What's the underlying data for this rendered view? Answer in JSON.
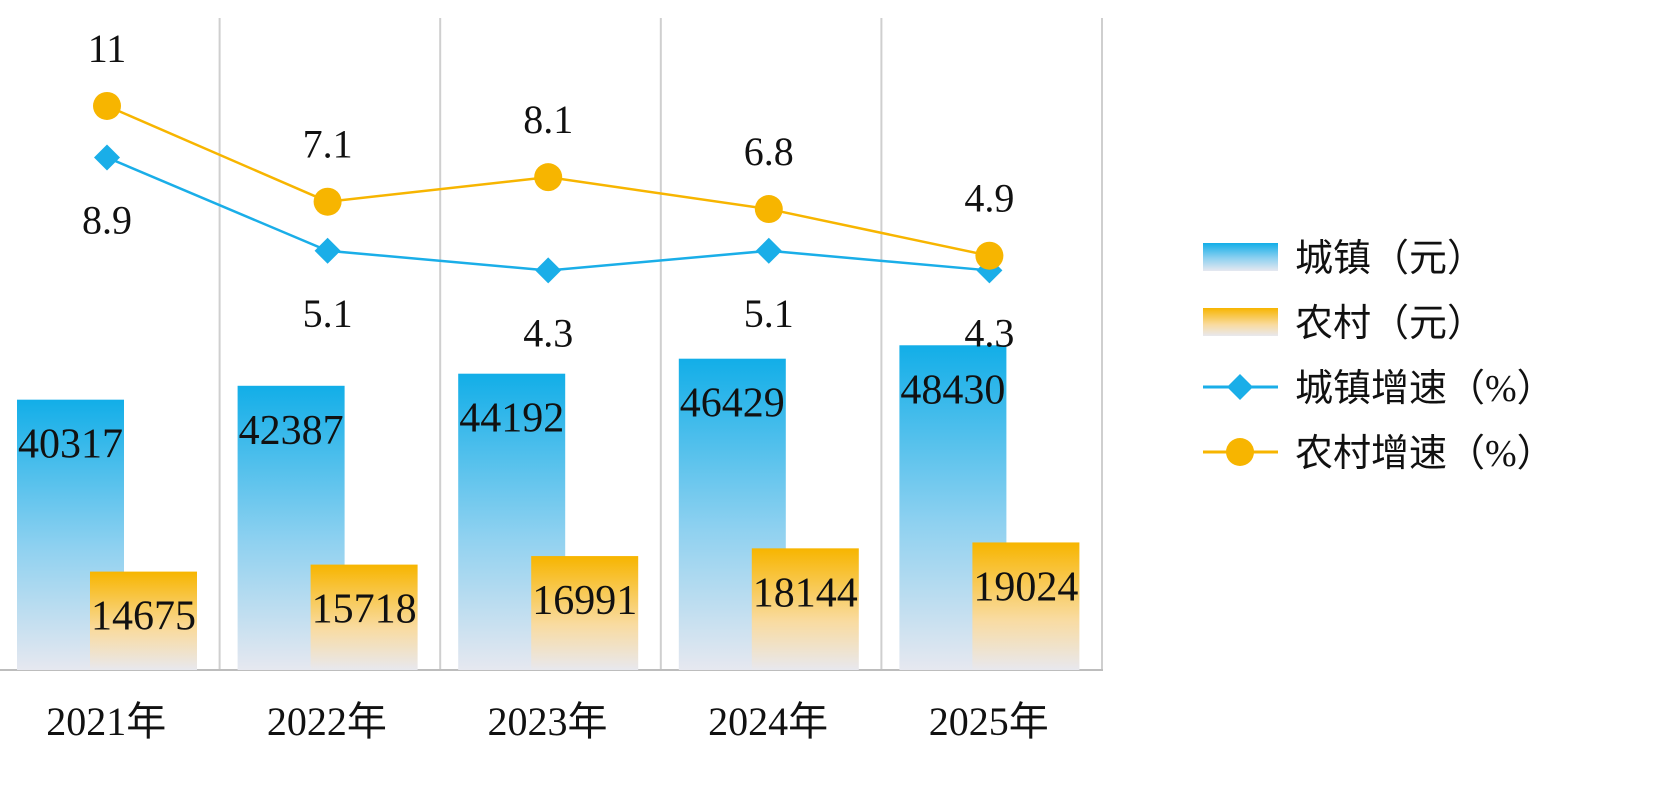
{
  "chart_data": {
    "type": "bar",
    "categories": [
      "2021年",
      "2022年",
      "2023年",
      "2024年",
      "2025年"
    ],
    "series": [
      {
        "name": "城镇（元）",
        "kind": "bar",
        "color": "#1aaee8",
        "values": [
          40317,
          42387,
          44192,
          46429,
          48430
        ]
      },
      {
        "name": "农村（元）",
        "kind": "bar",
        "color": "#f7b500",
        "values": [
          14675,
          15718,
          16991,
          18144,
          19024
        ]
      },
      {
        "name": "城镇增速（%）",
        "kind": "line",
        "marker": "diamond",
        "color": "#1aaee8",
        "values": [
          8.9,
          5.1,
          4.3,
          5.1,
          4.3
        ]
      },
      {
        "name": "农村增速（%）",
        "kind": "line",
        "marker": "circle",
        "color": "#f7b500",
        "values": [
          11,
          7.1,
          8.1,
          6.8,
          4.9
        ]
      }
    ],
    "legend_position": "right",
    "grid": "vertical",
    "title": ""
  }
}
